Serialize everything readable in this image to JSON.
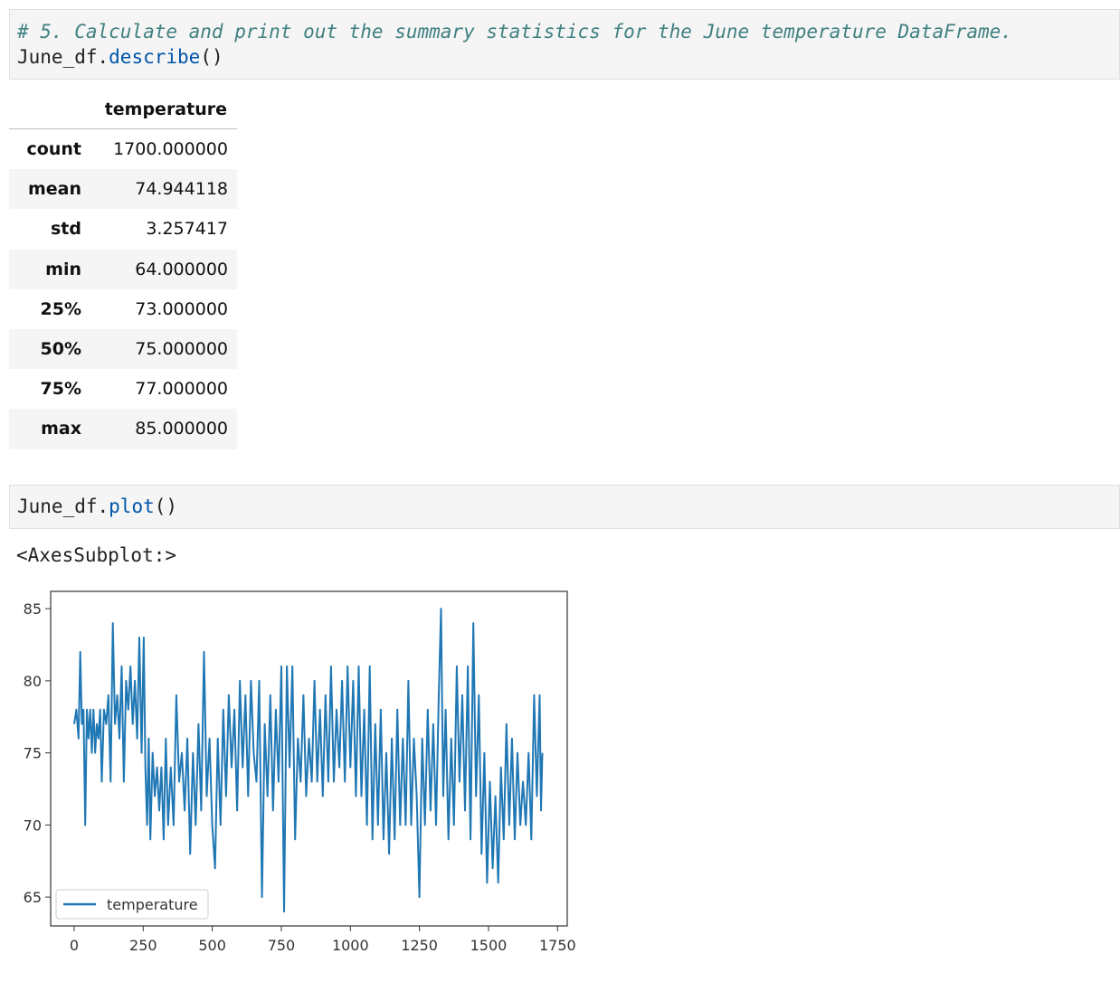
{
  "cell1": {
    "comment": "# 5. Calculate and print out the summary statistics for the June temperature DataFrame.",
    "obj": "June_df.",
    "method": "describe",
    "parens": "()"
  },
  "table": {
    "column": "temperature",
    "rows": [
      {
        "label": "count",
        "value": "1700.000000"
      },
      {
        "label": "mean",
        "value": "74.944118"
      },
      {
        "label": "std",
        "value": "3.257417"
      },
      {
        "label": "min",
        "value": "64.000000"
      },
      {
        "label": "25%",
        "value": "73.000000"
      },
      {
        "label": "50%",
        "value": "75.000000"
      },
      {
        "label": "75%",
        "value": "77.000000"
      },
      {
        "label": "max",
        "value": "85.000000"
      }
    ]
  },
  "cell2": {
    "obj": "June_df.",
    "method": "plot",
    "parens": "()"
  },
  "output_text": "<AxesSubplot:>",
  "chart_data": {
    "type": "line",
    "x_ticks": [
      0,
      250,
      500,
      750,
      1000,
      1250,
      1500,
      1750
    ],
    "y_ticks": [
      65,
      70,
      75,
      80,
      85
    ],
    "xlim": [
      -85,
      1785
    ],
    "ylim": [
      63,
      86.2
    ],
    "legend": "temperature",
    "legend_position": "lower-left",
    "series": [
      {
        "name": "temperature",
        "color": "#1f77b4",
        "points": [
          [
            0,
            77
          ],
          [
            8,
            78
          ],
          [
            16,
            76
          ],
          [
            22,
            82
          ],
          [
            28,
            77
          ],
          [
            34,
            78
          ],
          [
            40,
            70
          ],
          [
            46,
            78
          ],
          [
            52,
            76
          ],
          [
            58,
            78
          ],
          [
            64,
            75
          ],
          [
            70,
            78
          ],
          [
            76,
            75
          ],
          [
            82,
            77
          ],
          [
            88,
            76
          ],
          [
            94,
            78
          ],
          [
            100,
            73
          ],
          [
            108,
            78
          ],
          [
            116,
            77
          ],
          [
            124,
            79
          ],
          [
            132,
            73
          ],
          [
            140,
            84
          ],
          [
            148,
            77
          ],
          [
            156,
            79
          ],
          [
            164,
            76
          ],
          [
            172,
            81
          ],
          [
            180,
            73
          ],
          [
            188,
            80
          ],
          [
            196,
            78
          ],
          [
            204,
            81
          ],
          [
            212,
            77
          ],
          [
            220,
            80
          ],
          [
            228,
            76
          ],
          [
            236,
            83
          ],
          [
            244,
            75
          ],
          [
            252,
            83
          ],
          [
            258,
            74
          ],
          [
            264,
            70
          ],
          [
            270,
            76
          ],
          [
            276,
            69
          ],
          [
            284,
            75
          ],
          [
            292,
            72
          ],
          [
            300,
            74
          ],
          [
            308,
            71
          ],
          [
            316,
            74
          ],
          [
            324,
            69
          ],
          [
            332,
            76
          ],
          [
            340,
            70
          ],
          [
            350,
            74
          ],
          [
            360,
            70
          ],
          [
            370,
            79
          ],
          [
            380,
            73
          ],
          [
            390,
            75
          ],
          [
            400,
            71
          ],
          [
            410,
            76
          ],
          [
            420,
            68
          ],
          [
            430,
            75
          ],
          [
            440,
            70
          ],
          [
            450,
            77
          ],
          [
            460,
            71
          ],
          [
            470,
            82
          ],
          [
            480,
            72
          ],
          [
            490,
            76
          ],
          [
            500,
            70
          ],
          [
            510,
            67
          ],
          [
            520,
            76
          ],
          [
            530,
            70
          ],
          [
            540,
            78
          ],
          [
            550,
            72
          ],
          [
            560,
            79
          ],
          [
            570,
            74
          ],
          [
            580,
            78
          ],
          [
            590,
            71
          ],
          [
            600,
            80
          ],
          [
            610,
            74
          ],
          [
            620,
            79
          ],
          [
            630,
            72
          ],
          [
            640,
            80
          ],
          [
            650,
            75
          ],
          [
            660,
            73
          ],
          [
            670,
            80
          ],
          [
            680,
            65
          ],
          [
            690,
            77
          ],
          [
            700,
            72
          ],
          [
            710,
            79
          ],
          [
            720,
            71
          ],
          [
            730,
            78
          ],
          [
            740,
            73
          ],
          [
            750,
            81
          ],
          [
            760,
            64
          ],
          [
            770,
            81
          ],
          [
            780,
            74
          ],
          [
            790,
            81
          ],
          [
            800,
            69
          ],
          [
            810,
            76
          ],
          [
            820,
            73
          ],
          [
            830,
            79
          ],
          [
            840,
            72
          ],
          [
            850,
            76
          ],
          [
            860,
            73
          ],
          [
            870,
            80
          ],
          [
            880,
            73
          ],
          [
            890,
            78
          ],
          [
            900,
            72
          ],
          [
            910,
            79
          ],
          [
            920,
            73
          ],
          [
            930,
            81
          ],
          [
            940,
            73
          ],
          [
            950,
            78
          ],
          [
            960,
            74
          ],
          [
            970,
            80
          ],
          [
            980,
            73
          ],
          [
            990,
            81
          ],
          [
            1000,
            74
          ],
          [
            1010,
            80
          ],
          [
            1020,
            72
          ],
          [
            1030,
            81
          ],
          [
            1040,
            72
          ],
          [
            1050,
            78
          ],
          [
            1060,
            70
          ],
          [
            1070,
            81
          ],
          [
            1080,
            69
          ],
          [
            1090,
            77
          ],
          [
            1100,
            70
          ],
          [
            1110,
            78
          ],
          [
            1120,
            69
          ],
          [
            1130,
            75
          ],
          [
            1140,
            68
          ],
          [
            1150,
            76
          ],
          [
            1160,
            69
          ],
          [
            1170,
            78
          ],
          [
            1180,
            70
          ],
          [
            1190,
            76
          ],
          [
            1200,
            70
          ],
          [
            1210,
            80
          ],
          [
            1220,
            70
          ],
          [
            1230,
            76
          ],
          [
            1240,
            72
          ],
          [
            1250,
            65
          ],
          [
            1260,
            76
          ],
          [
            1270,
            70
          ],
          [
            1280,
            78
          ],
          [
            1290,
            71
          ],
          [
            1300,
            77
          ],
          [
            1310,
            70
          ],
          [
            1320,
            79
          ],
          [
            1328,
            85
          ],
          [
            1336,
            72
          ],
          [
            1345,
            78
          ],
          [
            1355,
            69
          ],
          [
            1365,
            76
          ],
          [
            1375,
            70
          ],
          [
            1385,
            81
          ],
          [
            1395,
            73
          ],
          [
            1405,
            79
          ],
          [
            1415,
            71
          ],
          [
            1425,
            81
          ],
          [
            1435,
            69
          ],
          [
            1445,
            84
          ],
          [
            1455,
            72
          ],
          [
            1465,
            79
          ],
          [
            1475,
            68
          ],
          [
            1485,
            75
          ],
          [
            1495,
            66
          ],
          [
            1505,
            73
          ],
          [
            1515,
            67
          ],
          [
            1525,
            72
          ],
          [
            1535,
            66
          ],
          [
            1545,
            74
          ],
          [
            1555,
            69
          ],
          [
            1565,
            77
          ],
          [
            1575,
            70
          ],
          [
            1585,
            76
          ],
          [
            1595,
            69
          ],
          [
            1605,
            75
          ],
          [
            1615,
            70
          ],
          [
            1625,
            73
          ],
          [
            1635,
            70
          ],
          [
            1645,
            75
          ],
          [
            1655,
            69
          ],
          [
            1665,
            79
          ],
          [
            1675,
            72
          ],
          [
            1685,
            79
          ],
          [
            1690,
            71
          ],
          [
            1695,
            75
          ]
        ]
      }
    ]
  }
}
